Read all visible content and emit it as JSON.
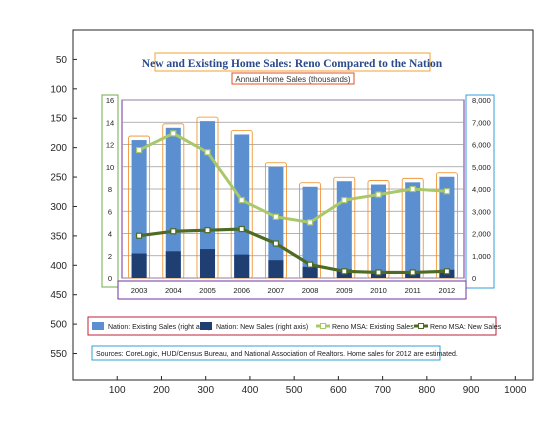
{
  "viewer": {
    "x_ticks": [
      "100",
      "200",
      "300",
      "400",
      "500",
      "600",
      "700",
      "800",
      "900",
      "1000"
    ],
    "y_ticks": [
      "50",
      "100",
      "150",
      "200",
      "250",
      "300",
      "350",
      "400",
      "450",
      "500",
      "550"
    ]
  },
  "chart_data": {
    "type": "bar",
    "title": "New and Existing Home Sales: Reno Compared to the Nation",
    "subtitle": "Annual Home Sales (thousands)",
    "categories": [
      "2003",
      "2004",
      "2005",
      "2006",
      "2007",
      "2008",
      "2009",
      "2010",
      "2011",
      "2012"
    ],
    "left_axis": {
      "ticks": [
        "0",
        "2",
        "4",
        "6",
        "8",
        "10",
        "12",
        "14",
        "16"
      ],
      "range": [
        0,
        16
      ]
    },
    "right_axis": {
      "ticks": [
        "0",
        "1,000",
        "2,000",
        "3,000",
        "4,000",
        "5,000",
        "6,000",
        "7,000",
        "8,000"
      ],
      "range": [
        0,
        8000
      ]
    },
    "series": [
      {
        "name": "Nation: Existing Sales (right axis)",
        "kind": "bar",
        "axis": "right",
        "color": "#5b8fd0",
        "values": [
          6200,
          6750,
          7050,
          6450,
          5000,
          4100,
          4350,
          4200,
          4300,
          4550
        ]
      },
      {
        "name": "Nation: New Sales (right axis)",
        "kind": "bar",
        "axis": "right",
        "color": "#1f3f73",
        "values": [
          1100,
          1200,
          1300,
          1050,
          800,
          500,
          380,
          320,
          310,
          370
        ]
      },
      {
        "name": "Reno MSA: Existing Sales",
        "kind": "line",
        "axis": "left",
        "color": "#a8c86a",
        "values": [
          11.5,
          13.0,
          11.3,
          7.0,
          5.5,
          5.0,
          7.0,
          7.5,
          8.0,
          7.8
        ]
      },
      {
        "name": "Reno MSA: New Sales",
        "kind": "line",
        "axis": "left",
        "color": "#4d6b24",
        "values": [
          3.8,
          4.2,
          4.3,
          4.4,
          3.1,
          1.2,
          0.6,
          0.5,
          0.5,
          0.6
        ]
      }
    ],
    "source": "Sources: CoreLogic, HUD/Census  Bureau, and National Association of Realtors. Home sales for 2012 are estimated."
  }
}
